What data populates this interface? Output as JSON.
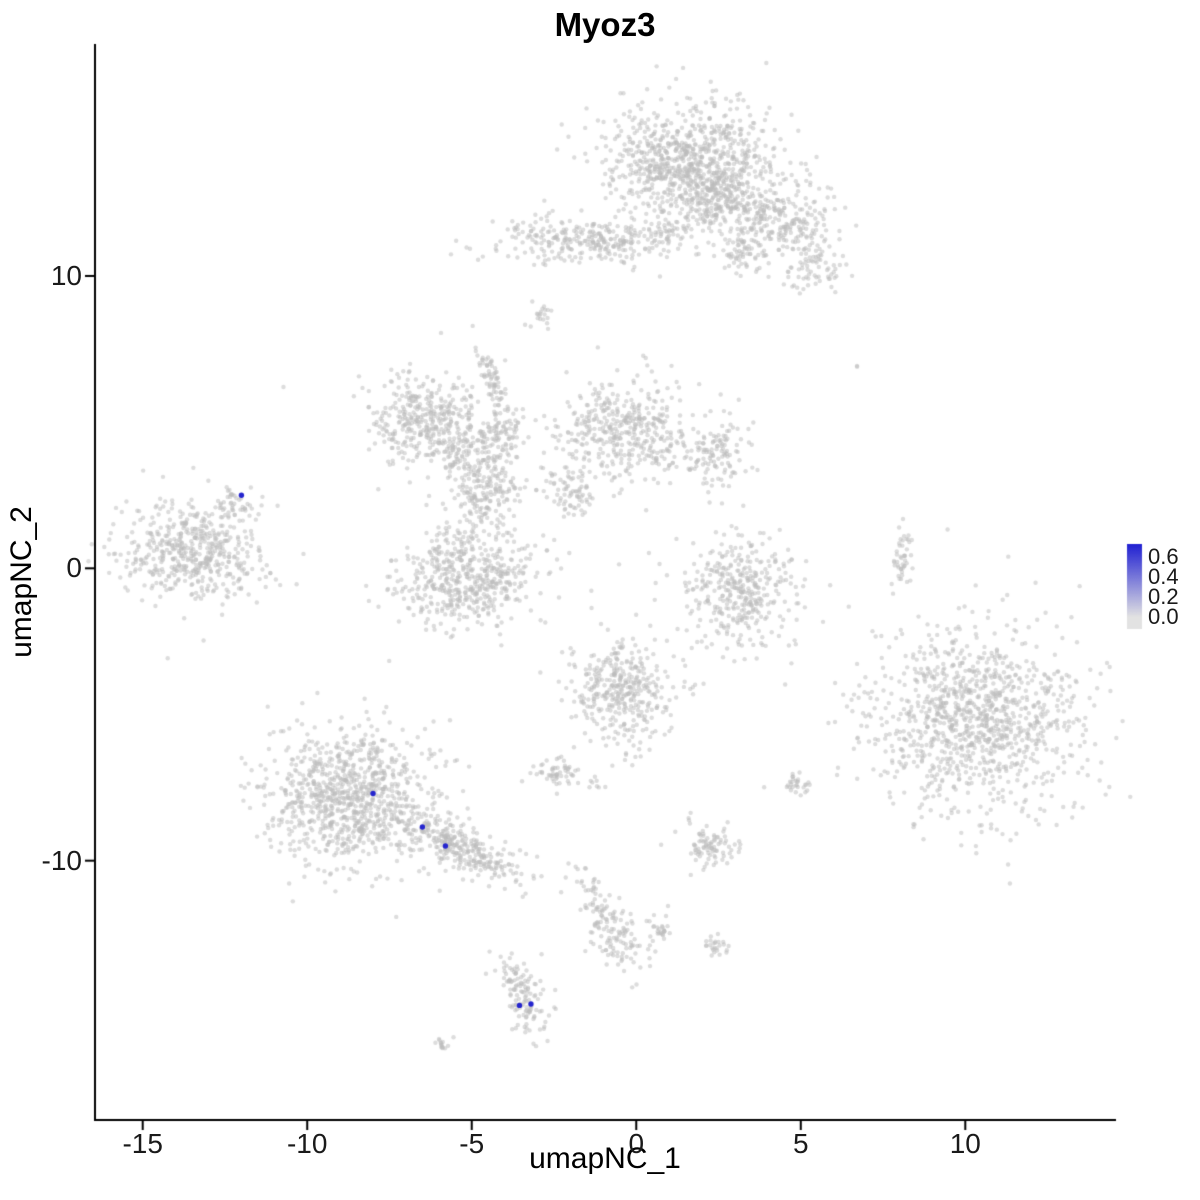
{
  "chart_data": {
    "type": "scatter",
    "title": "Myoz3",
    "xlabel": "umapNC_1",
    "ylabel": "umapNC_2",
    "xlim": [
      -16.45,
      14.55
    ],
    "ylim": [
      -18.87,
      17.9
    ],
    "x_ticks": [
      -15,
      -10,
      -5,
      0,
      5,
      10
    ],
    "x_tick_labels": [
      "-15",
      "-10",
      "-5",
      "0",
      "5",
      "10"
    ],
    "y_ticks": [
      -10,
      0,
      10
    ],
    "y_tick_labels": [
      "-10",
      "0",
      "10"
    ],
    "grid": false,
    "background_color": "#ffffff",
    "point_color": "rgba(187,187,187,0.5)",
    "highlight_color": "#2525CE",
    "point_radius": 2.2,
    "highlight_radius": 2.7,
    "legend": {
      "position": "right",
      "ticks": [
        0.0,
        0.2,
        0.4,
        0.6
      ],
      "tick_labels": [
        "0.0",
        "0.2",
        "0.4",
        "0.6"
      ],
      "low_color": "#E2E2E2",
      "high_color": "#2020D2",
      "bar_range": [
        -0.12,
        0.73
      ]
    },
    "clusters": [
      {
        "x": 1.7,
        "y": 13.9,
        "sx": 1.25,
        "sy": 1.0,
        "n": 900
      },
      {
        "x": 2.6,
        "y": 12.6,
        "sx": 0.6,
        "sy": 0.5,
        "n": 150
      },
      {
        "x": 4.4,
        "y": 11.9,
        "sx": 0.8,
        "sy": 0.6,
        "n": 220
      },
      {
        "x": 5.5,
        "y": 10.3,
        "sx": 0.5,
        "sy": 0.45,
        "n": 80
      },
      {
        "x": 3.2,
        "y": 10.9,
        "sx": 0.4,
        "sy": 0.35,
        "n": 60
      },
      {
        "x": -2.4,
        "y": 11.3,
        "sx": 1.1,
        "sy": 0.4,
        "n": 170
      },
      {
        "x": -0.6,
        "y": 11.1,
        "sx": 0.7,
        "sy": 0.35,
        "n": 110
      },
      {
        "x": 0.9,
        "y": 11.5,
        "sx": 0.4,
        "sy": 0.4,
        "n": 60
      },
      {
        "x": -2.9,
        "y": 8.7,
        "sx": 0.25,
        "sy": 0.25,
        "n": 20
      },
      {
        "x": -6.3,
        "y": 5.1,
        "sx": 0.9,
        "sy": 0.75,
        "n": 380
      },
      {
        "x": -4.45,
        "y": 6.6,
        "sx": 0.15,
        "sy": 0.75,
        "n": 70,
        "rot": 22
      },
      {
        "x": -5.6,
        "y": 4.0,
        "sx": 0.35,
        "sy": 0.35,
        "n": 60
      },
      {
        "x": -4.6,
        "y": 2.9,
        "sx": 0.5,
        "sy": 0.9,
        "n": 240
      },
      {
        "x": -4.0,
        "y": 4.6,
        "sx": 0.35,
        "sy": 0.4,
        "n": 70
      },
      {
        "x": -0.4,
        "y": 4.7,
        "sx": 1.05,
        "sy": 0.85,
        "n": 420
      },
      {
        "x": 2.3,
        "y": 3.9,
        "sx": 0.55,
        "sy": 0.6,
        "n": 130
      },
      {
        "x": -1.9,
        "y": 2.6,
        "sx": 0.5,
        "sy": 0.4,
        "n": 80
      },
      {
        "x": -5.1,
        "y": -0.3,
        "sx": 1.05,
        "sy": 0.8,
        "n": 520
      },
      {
        "x": -13.4,
        "y": 0.6,
        "sx": 1.05,
        "sy": 0.8,
        "n": 520
      },
      {
        "x": -12.1,
        "y": 2.2,
        "sx": 0.35,
        "sy": 0.3,
        "n": 40
      },
      {
        "x": 3.1,
        "y": -0.8,
        "sx": 0.85,
        "sy": 0.95,
        "n": 380
      },
      {
        "x": 8.1,
        "y": 0.3,
        "sx": 0.15,
        "sy": 0.6,
        "n": 45
      },
      {
        "x": -0.4,
        "y": -4.2,
        "sx": 0.8,
        "sy": 0.9,
        "n": 380
      },
      {
        "x": 10.3,
        "y": -5.1,
        "sx": 1.6,
        "sy": 1.55,
        "n": 1100
      },
      {
        "x": -8.7,
        "y": -7.8,
        "sx": 1.25,
        "sy": 1.15,
        "n": 950
      },
      {
        "x": -5.3,
        "y": -9.6,
        "sx": 1.1,
        "sy": 0.35,
        "n": 300,
        "rot": -30
      },
      {
        "x": -2.4,
        "y": -7.0,
        "sx": 0.35,
        "sy": 0.25,
        "n": 55
      },
      {
        "x": -1.2,
        "y": -7.3,
        "sx": 0.12,
        "sy": 0.12,
        "n": 8
      },
      {
        "x": 4.9,
        "y": -7.4,
        "sx": 0.25,
        "sy": 0.2,
        "n": 30
      },
      {
        "x": 2.3,
        "y": -9.5,
        "sx": 0.4,
        "sy": 0.35,
        "n": 90
      },
      {
        "x": -0.8,
        "y": -12.2,
        "sx": 0.32,
        "sy": 0.95,
        "n": 150,
        "rot": 25
      },
      {
        "x": 0.6,
        "y": -12.3,
        "sx": 0.2,
        "sy": 0.3,
        "n": 30
      },
      {
        "x": 2.5,
        "y": -12.9,
        "sx": 0.25,
        "sy": 0.2,
        "n": 25
      },
      {
        "x": -3.4,
        "y": -14.7,
        "sx": 0.3,
        "sy": 0.85,
        "n": 130,
        "rot": 15
      },
      {
        "x": -6.0,
        "y": -16.3,
        "sx": 0.18,
        "sy": 0.12,
        "n": 14
      },
      {
        "x": 6.7,
        "y": 6.9,
        "sx": 0.05,
        "sy": 0.05,
        "n": 2
      },
      {
        "x": -10.7,
        "y": 6.2,
        "sx": 0.02,
        "sy": 0.02,
        "n": 1
      },
      {
        "x": -2.6,
        "y": 0.6,
        "sx": 0.3,
        "sy": 0.3,
        "n": 6
      }
    ],
    "highlight_points": [
      {
        "x": -12.0,
        "y": 2.5,
        "value": 0.6
      },
      {
        "x": -8.0,
        "y": -7.7,
        "value": 0.6
      },
      {
        "x": -6.5,
        "y": -8.85,
        "value": 0.6
      },
      {
        "x": -5.8,
        "y": -9.5,
        "value": 0.6
      },
      {
        "x": -3.55,
        "y": -14.95,
        "value": 0.6
      },
      {
        "x": -3.2,
        "y": -14.9,
        "value": 0.6
      }
    ]
  }
}
